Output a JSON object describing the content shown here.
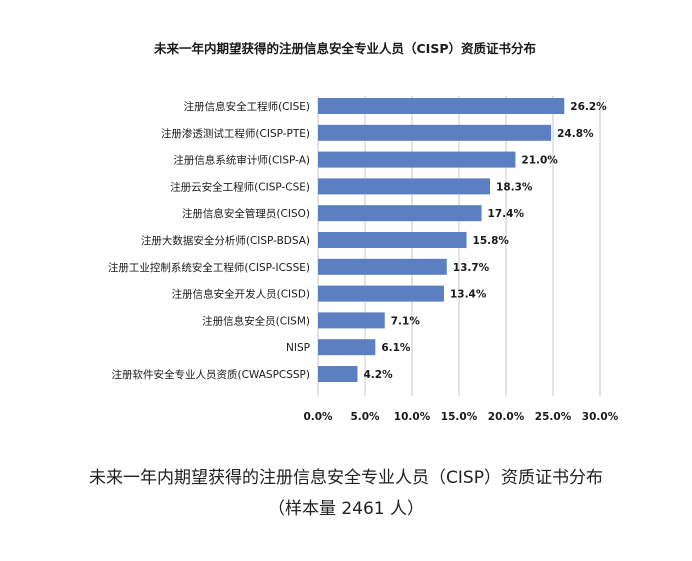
{
  "chart_data": {
    "type": "bar",
    "orientation": "horizontal",
    "title": "未来一年内期望获得的注册信息安全专业人员（CISP）资质证书分布",
    "categories": [
      "注册信息安全工程师(CISE)",
      "注册渗透测试工程师(CISP-PTE)",
      "注册信息系统审计师(CISP-A)",
      "注册云安全工程师(CISP-CSE)",
      "注册信息安全管理员(CISO)",
      "注册大数据安全分析师(CISP-BDSA)",
      "注册工业控制系统安全工程师(CISP-ICSSE)",
      "注册信息安全开发人员(CISD)",
      "注册信息安全员(CISM)",
      "NISP",
      "注册软件安全专业人员资质(CWASPCSSP)"
    ],
    "values": [
      26.2,
      24.8,
      21.0,
      18.3,
      17.4,
      15.8,
      13.7,
      13.4,
      7.1,
      6.1,
      4.2
    ],
    "value_labels": [
      "26.2%",
      "24.8%",
      "21.0%",
      "18.3%",
      "17.4%",
      "15.8%",
      "13.7%",
      "13.4%",
      "7.1%",
      "6.1%",
      "4.2%"
    ],
    "xlim": [
      0,
      30
    ],
    "x_ticks": [
      "0.0%",
      "5.0%",
      "10.0%",
      "15.0%",
      "20.0%",
      "25.0%",
      "30.0%"
    ],
    "grid": true,
    "bar_color": "#5b7fc0",
    "grid_color": "#c8c8c8"
  },
  "caption": {
    "line1": "未来一年内期望获得的注册信息安全专业人员（CISP）资质证书分布",
    "line2": "（样本量 2461 人）"
  }
}
